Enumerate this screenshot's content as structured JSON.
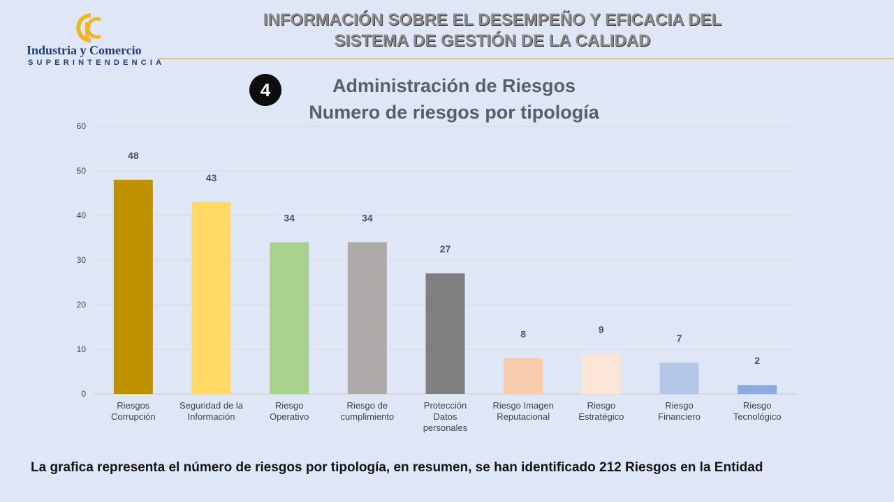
{
  "header": {
    "title_line1": "INFORMACIÓN SOBRE EL DESEMPEÑO Y EFICACIA DEL",
    "title_line2": "SISTEMA DE GESTIÓN DE LA  CALIDAD"
  },
  "logo": {
    "name": "Industria y Comercio",
    "subtitle": "SUPERINTENDENCIA",
    "accent_color": "#f0b52a",
    "text_color": "#1e3d7a"
  },
  "badge": {
    "number": "4"
  },
  "chart_data": {
    "type": "bar",
    "title": "Administración de Riesgos",
    "subtitle": "Numero de riesgos por tipología",
    "categories": [
      "Riesgos Corrupción",
      "Seguridad de la Información",
      "Riesgo Operativo",
      "Riesgo de cumplimiento",
      "Protección Datos personales",
      "Riesgo Imagen Reputacional",
      "Riesgo Estratégico",
      "Riesgo Financiero",
      "Riesgo Tecnológico"
    ],
    "category_lines": [
      [
        "Riesgos",
        "Corrupción"
      ],
      [
        "Seguridad de la",
        "Información"
      ],
      [
        "Riesgo",
        "Operativo"
      ],
      [
        "Riesgo de",
        "cumplimiento"
      ],
      [
        "Protección",
        "Datos",
        "personales"
      ],
      [
        "Riesgo Imagen",
        "Reputacional"
      ],
      [
        "Riesgo",
        "Estratégico"
      ],
      [
        "Riesgo",
        "Financiero"
      ],
      [
        "Riesgo",
        "Tecnológico"
      ]
    ],
    "values": [
      48,
      43,
      34,
      34,
      27,
      8,
      9,
      7,
      2
    ],
    "colors": [
      "#bf9000",
      "#ffd966",
      "#a9d18e",
      "#aeaaaa",
      "#7f7f7f",
      "#f8cbad",
      "#fbe5d6",
      "#b4c7e7",
      "#8faadc"
    ],
    "ylim": [
      0,
      60
    ],
    "yticks": [
      0,
      10,
      20,
      30,
      40,
      50,
      60
    ],
    "grid": true,
    "legend": "none"
  },
  "caption": "La grafica representa el número de riesgos por tipología, en resumen, se han identificado 212 Riesgos en la Entidad"
}
